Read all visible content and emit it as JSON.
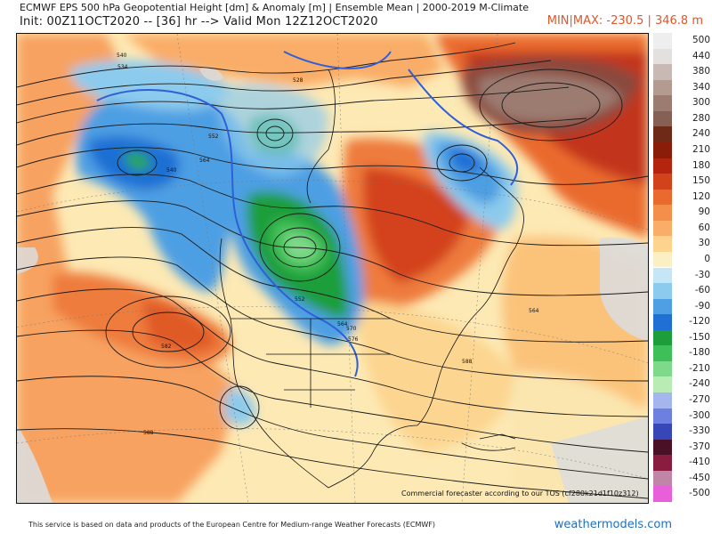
{
  "header": {
    "title_line1": "ECMWF EPS 500 hPa Geopotential Height [dm] & Anomaly [m] | Ensemble Mean | 2000-2019 M-Climate",
    "title_line2": "Init: 00Z11OCT2020 -- [36] hr --> Valid Mon 12Z12OCT2020",
    "minmax": "MIN|MAX: -230.5 | 346.8 m"
  },
  "colorbar": [
    {
      "label": "500",
      "color": "#eeeeee"
    },
    {
      "label": "440",
      "color": "#e3e0df"
    },
    {
      "label": "380",
      "color": "#c9b9b4"
    },
    {
      "label": "340",
      "color": "#b39b92"
    },
    {
      "label": "300",
      "color": "#9c7c71"
    },
    {
      "label": "280",
      "color": "#865f55"
    },
    {
      "label": "240",
      "color": "#6e2a16"
    },
    {
      "label": "210",
      "color": "#8a1c0a"
    },
    {
      "label": "180",
      "color": "#b4250f"
    },
    {
      "label": "150",
      "color": "#d3431b"
    },
    {
      "label": "120",
      "color": "#ea6a2e"
    },
    {
      "label": "90",
      "color": "#f48e4b"
    },
    {
      "label": "60",
      "color": "#f9ad67"
    },
    {
      "label": "30",
      "color": "#fdd38e"
    },
    {
      "label": "0",
      "color": "#fdefc4"
    },
    {
      "label": "-30",
      "color": "#c6e6f5"
    },
    {
      "label": "-60",
      "color": "#8ccbed"
    },
    {
      "label": "-90",
      "color": "#4e9fe3"
    },
    {
      "label": "-120",
      "color": "#1f6fd4"
    },
    {
      "label": "-150",
      "color": "#1e9e3a"
    },
    {
      "label": "-180",
      "color": "#3fbf57"
    },
    {
      "label": "-210",
      "color": "#7fd98a"
    },
    {
      "label": "-240",
      "color": "#b9ecb5"
    },
    {
      "label": "-270",
      "color": "#a5b6ee"
    },
    {
      "label": "-300",
      "color": "#6d7fdf"
    },
    {
      "label": "-330",
      "color": "#3847b8"
    },
    {
      "label": "-370",
      "color": "#4a1126"
    },
    {
      "label": "-410",
      "color": "#8a1d3f"
    },
    {
      "label": "-450",
      "color": "#c086a8"
    },
    {
      "label": "-500",
      "color": "#e85fd9"
    }
  ],
  "map": {
    "contour_labels": [
      "540",
      "534",
      "528",
      "540",
      "552",
      "564",
      "570",
      "576",
      "582",
      "588",
      "588",
      "564",
      "552",
      "564"
    ],
    "disclaimer": "Commercial forecaster according to our TOS (cf280k21d1f10z312)"
  },
  "footer": {
    "note": "This service is based on data and products of the European Centre for Medium-range Weather Forecasts (ECMWF)",
    "brand": "weathermodels.com"
  }
}
